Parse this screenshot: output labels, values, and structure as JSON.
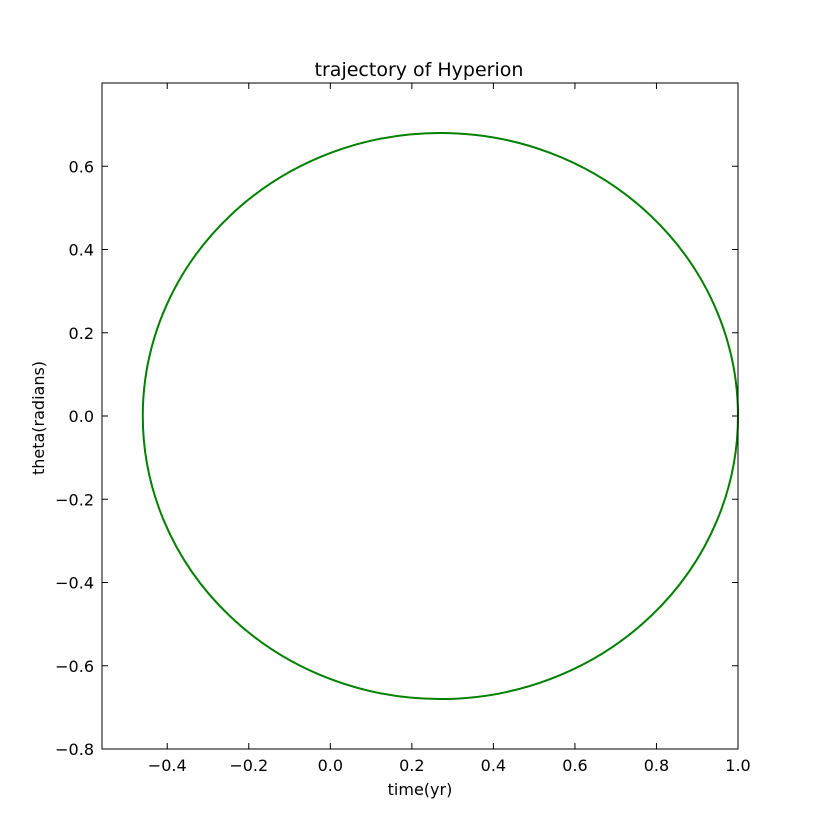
{
  "chart_data": {
    "type": "line",
    "title": "trajectory of Hyperion",
    "xlabel": "time(yr)",
    "ylabel": "theta(radians)",
    "xlim": [
      -0.56,
      1.0
    ],
    "ylim": [
      -0.8,
      0.8
    ],
    "xticks": [
      -0.4,
      -0.2,
      0.0,
      0.2,
      0.4,
      0.6,
      0.8,
      1.0
    ],
    "xtick_labels": [
      "−0.4",
      "−0.2",
      "0.0",
      "0.2",
      "0.4",
      "0.6",
      "0.8",
      "1.0"
    ],
    "yticks": [
      -0.8,
      -0.6,
      -0.4,
      -0.2,
      0.0,
      0.2,
      0.4,
      0.6
    ],
    "ytick_labels": [
      "−0.8",
      "−0.6",
      "−0.4",
      "−0.2",
      "0.0",
      "0.2",
      "0.4",
      "0.6"
    ],
    "grid": false,
    "series": [
      {
        "color": "#008000",
        "shape": "ellipse",
        "center": [
          0.27,
          0.0
        ],
        "radius_x": 0.73,
        "radius_y": 0.68,
        "x_range": [
          -0.46,
          1.0
        ],
        "y_range": [
          -0.68,
          0.68
        ]
      }
    ]
  }
}
